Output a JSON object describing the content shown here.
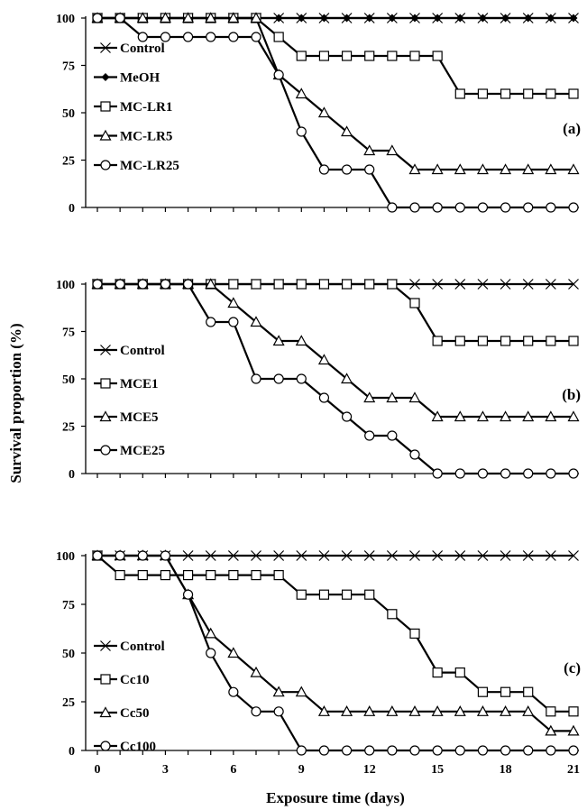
{
  "ylabel": "Survival proportion (%)",
  "xlabel": "Exposure time (days)",
  "chart_data": [
    {
      "type": "line",
      "panel_label": "(a)",
      "x": [
        0,
        1,
        2,
        3,
        4,
        5,
        6,
        7,
        8,
        9,
        10,
        11,
        12,
        13,
        14,
        15,
        16,
        17,
        18,
        19,
        20,
        21
      ],
      "ylim": [
        0,
        100
      ],
      "yticks": [
        0,
        25,
        50,
        75,
        100
      ],
      "xticks": [
        0,
        1,
        2,
        3,
        4,
        5,
        6,
        7,
        8,
        9,
        10,
        11,
        12,
        13,
        14,
        15,
        16,
        17,
        18,
        19,
        20,
        21
      ],
      "legend_position": "left",
      "series": [
        {
          "name": "Control",
          "marker": "x",
          "values": [
            100,
            100,
            100,
            100,
            100,
            100,
            100,
            100,
            100,
            100,
            100,
            100,
            100,
            100,
            100,
            100,
            100,
            100,
            100,
            100,
            100,
            100
          ]
        },
        {
          "name": "MeOH",
          "marker": "diamond",
          "values": [
            100,
            100,
            100,
            100,
            100,
            100,
            100,
            100,
            100,
            100,
            100,
            100,
            100,
            100,
            100,
            100,
            100,
            100,
            100,
            100,
            100,
            100
          ]
        },
        {
          "name": "MC-LR1",
          "marker": "square",
          "values": [
            100,
            100,
            100,
            100,
            100,
            100,
            100,
            100,
            90,
            80,
            80,
            80,
            80,
            80,
            80,
            80,
            60,
            60,
            60,
            60,
            60,
            60
          ]
        },
        {
          "name": "MC-LR5",
          "marker": "triangle",
          "values": [
            100,
            100,
            100,
            100,
            100,
            100,
            100,
            100,
            70,
            60,
            50,
            40,
            30,
            30,
            20,
            20,
            20,
            20,
            20,
            20,
            20,
            20
          ]
        },
        {
          "name": "MC-LR25",
          "marker": "circle",
          "values": [
            100,
            100,
            90,
            90,
            90,
            90,
            90,
            90,
            70,
            40,
            20,
            20,
            20,
            0,
            0,
            0,
            0,
            0,
            0,
            0,
            0,
            0
          ]
        }
      ]
    },
    {
      "type": "line",
      "panel_label": "(b)",
      "x": [
        0,
        1,
        2,
        3,
        4,
        5,
        6,
        7,
        8,
        9,
        10,
        11,
        12,
        13,
        14,
        15,
        16,
        17,
        18,
        19,
        20,
        21
      ],
      "ylim": [
        0,
        100
      ],
      "yticks": [
        0,
        25,
        50,
        75,
        100
      ],
      "xticks": [
        0,
        1,
        2,
        3,
        4,
        5,
        6,
        7,
        8,
        9,
        10,
        11,
        12,
        13,
        14,
        15,
        16,
        17,
        18,
        19,
        20,
        21
      ],
      "legend_position": "left",
      "series": [
        {
          "name": "Control",
          "marker": "x",
          "values": [
            100,
            100,
            100,
            100,
            100,
            100,
            100,
            100,
            100,
            100,
            100,
            100,
            100,
            100,
            100,
            100,
            100,
            100,
            100,
            100,
            100,
            100
          ]
        },
        {
          "name": "MCE1",
          "marker": "square",
          "values": [
            100,
            100,
            100,
            100,
            100,
            100,
            100,
            100,
            100,
            100,
            100,
            100,
            100,
            100,
            90,
            70,
            70,
            70,
            70,
            70,
            70,
            70
          ]
        },
        {
          "name": "MCE5",
          "marker": "triangle",
          "values": [
            100,
            100,
            100,
            100,
            100,
            100,
            90,
            80,
            70,
            70,
            60,
            50,
            40,
            40,
            40,
            30,
            30,
            30,
            30,
            30,
            30,
            30
          ]
        },
        {
          "name": "MCE25",
          "marker": "circle",
          "values": [
            100,
            100,
            100,
            100,
            100,
            80,
            80,
            50,
            50,
            50,
            40,
            30,
            20,
            20,
            10,
            0,
            0,
            0,
            0,
            0,
            0,
            0
          ]
        }
      ]
    },
    {
      "type": "line",
      "panel_label": "(c)",
      "x": [
        0,
        1,
        2,
        3,
        4,
        5,
        6,
        7,
        8,
        9,
        10,
        11,
        12,
        13,
        14,
        15,
        16,
        17,
        18,
        19,
        20,
        21
      ],
      "ylim": [
        0,
        100
      ],
      "yticks": [
        0,
        25,
        50,
        75,
        100
      ],
      "xticks": [
        0,
        3,
        6,
        9,
        12,
        15,
        18,
        21
      ],
      "legend_position": "left",
      "series": [
        {
          "name": "Control",
          "marker": "x",
          "values": [
            100,
            100,
            100,
            100,
            100,
            100,
            100,
            100,
            100,
            100,
            100,
            100,
            100,
            100,
            100,
            100,
            100,
            100,
            100,
            100,
            100,
            100
          ]
        },
        {
          "name": "Cc10",
          "marker": "square",
          "values": [
            100,
            90,
            90,
            90,
            90,
            90,
            90,
            90,
            90,
            80,
            80,
            80,
            80,
            70,
            60,
            40,
            40,
            30,
            30,
            30,
            20,
            20
          ]
        },
        {
          "name": "Cc50",
          "marker": "triangle",
          "values": [
            100,
            100,
            100,
            100,
            80,
            60,
            50,
            40,
            30,
            30,
            20,
            20,
            20,
            20,
            20,
            20,
            20,
            20,
            20,
            20,
            10,
            10
          ]
        },
        {
          "name": "Cc100",
          "marker": "circle",
          "values": [
            100,
            100,
            100,
            100,
            80,
            50,
            30,
            20,
            20,
            0,
            0,
            0,
            0,
            0,
            0,
            0,
            0,
            0,
            0,
            0,
            0,
            0
          ]
        }
      ]
    }
  ]
}
